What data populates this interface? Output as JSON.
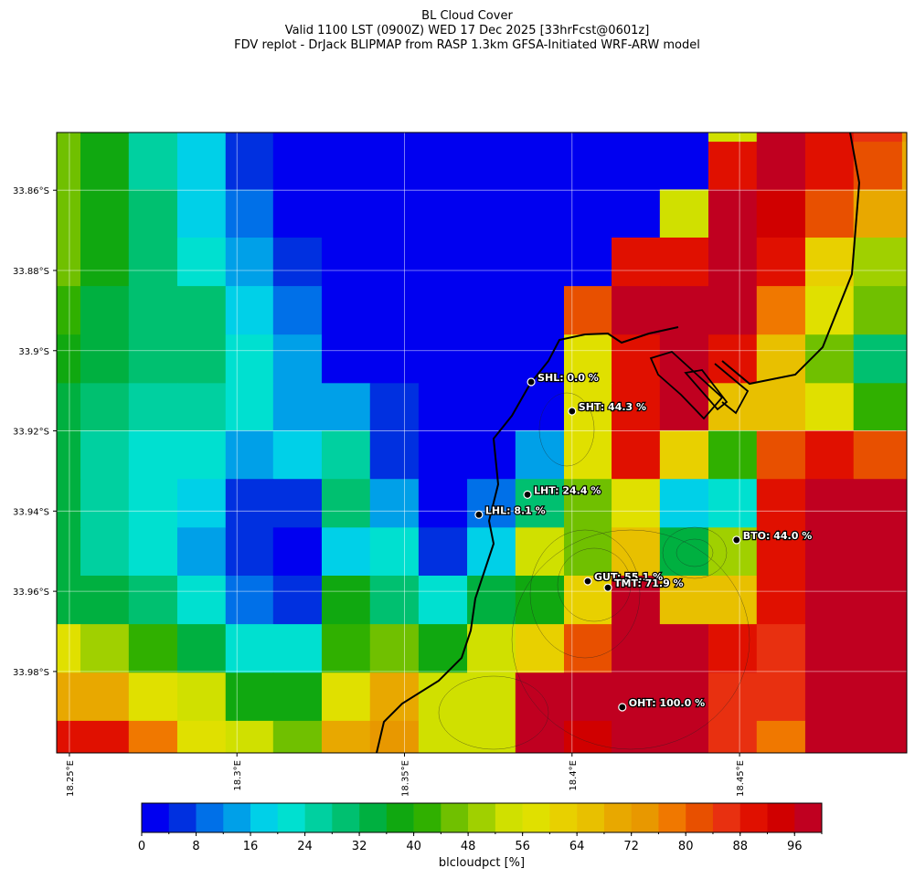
{
  "chart_data": {
    "type": "heatmap",
    "title": [
      "BL Cloud Cover",
      "Valid 1100 LST (0900Z) WED 17 Dec 2025 [33hrFcst@0601z]",
      "FDV replot - DrJack BLIPMAP from RASP 1.3km GFSA-Initiated WRF-ARW model"
    ],
    "xlim": [
      18.2462,
      18.4999
    ],
    "ylim": [
      -33.8456,
      -34.0003
    ],
    "xticks": [
      {
        "value": 18.25,
        "label": "18.25°E"
      },
      {
        "value": 18.3,
        "label": "18.3°E"
      },
      {
        "value": 18.35,
        "label": "18.35°E"
      },
      {
        "value": 18.4,
        "label": "18.4°E"
      },
      {
        "value": 18.45,
        "label": "18.45°E"
      }
    ],
    "yticks": [
      {
        "value": -33.86,
        "label": "33.86°S"
      },
      {
        "value": -33.88,
        "label": "33.88°S"
      },
      {
        "value": -33.9,
        "label": "33.9°S"
      },
      {
        "value": -33.92,
        "label": "33.92°S"
      },
      {
        "value": -33.94,
        "label": "33.94°S"
      },
      {
        "value": -33.96,
        "label": "33.96°S"
      },
      {
        "value": -33.98,
        "label": "33.98°S"
      }
    ],
    "grid": true,
    "grid_cells": {
      "lon_edges": [
        18.2388,
        18.2533,
        18.2677,
        18.2822,
        18.2966,
        18.3108,
        18.3253,
        18.3397,
        18.3542,
        18.3687,
        18.3831,
        18.3976,
        18.4118,
        18.4262,
        18.4407,
        18.4551,
        18.4696,
        18.484,
        18.4985,
        18.513
      ],
      "lat_edges": [
        -33.8359,
        -33.8479,
        -33.8598,
        -33.8718,
        -33.8839,
        -33.896,
        -33.9081,
        -33.9199,
        -33.932,
        -33.9441,
        -33.9561,
        -33.9682,
        -33.9803,
        -33.9923,
        -34.0044
      ],
      "values": [
        [
          46,
          37,
          26,
          18,
          5,
          0,
          0,
          0,
          0,
          0,
          0,
          0,
          0,
          0,
          54,
          97,
          89,
          86,
          72
        ],
        [
          46,
          37,
          26,
          18,
          5,
          0,
          0,
          0,
          0,
          0,
          0,
          0,
          0,
          0,
          89,
          97,
          88,
          82,
          70
        ],
        [
          46,
          37,
          29,
          18,
          9,
          0,
          0,
          0,
          0,
          0,
          0,
          0,
          0,
          54,
          97,
          92,
          82,
          70,
          70
        ],
        [
          46,
          37,
          29,
          22,
          13,
          5,
          0,
          0,
          0,
          0,
          0,
          0,
          89,
          89,
          97,
          89,
          61,
          50,
          50
        ],
        [
          41,
          34,
          30,
          30,
          18,
          9,
          0,
          0,
          0,
          0,
          0,
          82,
          97,
          97,
          97,
          78,
          57,
          46,
          46
        ],
        [
          38,
          34,
          30,
          30,
          22,
          13,
          0,
          0,
          0,
          0,
          0,
          58,
          90,
          97,
          90,
          66,
          46,
          29,
          29
        ],
        [
          34,
          30,
          26,
          26,
          22,
          13,
          13,
          5,
          0,
          0,
          0,
          58,
          90,
          97,
          64,
          64,
          57,
          41,
          41
        ],
        [
          34,
          26,
          22,
          22,
          13,
          18,
          26,
          5,
          0,
          0,
          13,
          58,
          90,
          60,
          42,
          82,
          88,
          82,
          82
        ],
        [
          34,
          26,
          22,
          18,
          5,
          5,
          30,
          13,
          0,
          9,
          30,
          44,
          56,
          18,
          22,
          91,
          97,
          97,
          97
        ],
        [
          34,
          26,
          22,
          13,
          5,
          0,
          18,
          22,
          5,
          18,
          55,
          45,
          64,
          34,
          48,
          91,
          97,
          97,
          97
        ],
        [
          34,
          34,
          30,
          22,
          9,
          5,
          37,
          30,
          22,
          34,
          37,
          62,
          97,
          66,
          64,
          88,
          97,
          97,
          97
        ],
        [
          58,
          50,
          41,
          34,
          22,
          22,
          41,
          46,
          38,
          52,
          61,
          82,
          97,
          97,
          90,
          86,
          97,
          97,
          97
        ],
        [
          68,
          68,
          58,
          52,
          37,
          37,
          57,
          68,
          52,
          54,
          97,
          97,
          97,
          97,
          86,
          86,
          97,
          97,
          97
        ],
        [
          90,
          88,
          76,
          57,
          54,
          45,
          69,
          74,
          52,
          52,
          97,
          92,
          97,
          97,
          86,
          78,
          97,
          97,
          97
        ]
      ]
    },
    "stations": [
      {
        "lon": 18.3878,
        "lat": -33.9078,
        "value": 0.0,
        "label": "SHL: 0.0 %"
      },
      {
        "lon": 18.4,
        "lat": -33.9151,
        "value": 44.3,
        "label": "SHT: 44.3 %"
      },
      {
        "lon": 18.3867,
        "lat": -33.9359,
        "value": 24.4,
        "label": "LHT: 24.4 %"
      },
      {
        "lon": 18.3722,
        "lat": -33.9409,
        "value": 8.1,
        "label": "LHL: 8.1 %"
      },
      {
        "lon": 18.4491,
        "lat": -33.9472,
        "value": 44.0,
        "label": "BTO: 44.0 %"
      },
      {
        "lon": 18.4047,
        "lat": -33.9575,
        "value": 55.1,
        "label": "GUT: 55.1 %"
      },
      {
        "lon": 18.4107,
        "lat": -33.9591,
        "value": 71.9,
        "label": "TMT: 71.9 %"
      },
      {
        "lon": 18.415,
        "lat": -33.9889,
        "value": 100.0,
        "label": "OHT: 100.0 %"
      }
    ],
    "colorbar": {
      "label": "blcloudpct [%]",
      "levels": [
        0,
        4,
        8,
        12,
        16,
        20,
        24,
        28,
        32,
        36,
        40,
        44,
        48,
        52,
        56,
        60,
        64,
        68,
        72,
        76,
        80,
        84,
        88,
        92,
        96,
        100
      ],
      "colors": [
        "#0000f0",
        "#0030e0",
        "#0070e8",
        "#00a0e8",
        "#00d0e8",
        "#00e0d0",
        "#00d0a0",
        "#00c070",
        "#00b040",
        "#10a810",
        "#30b000",
        "#70c000",
        "#a0d000",
        "#d0e000",
        "#e0e000",
        "#e8d000",
        "#e8c000",
        "#e8a800",
        "#e89800",
        "#f07800",
        "#e85000",
        "#e83010",
        "#e01000",
        "#d00000",
        "#c00020"
      ],
      "ticks": [
        0,
        8,
        16,
        24,
        32,
        40,
        48,
        56,
        64,
        72,
        80,
        88,
        96
      ]
    }
  }
}
